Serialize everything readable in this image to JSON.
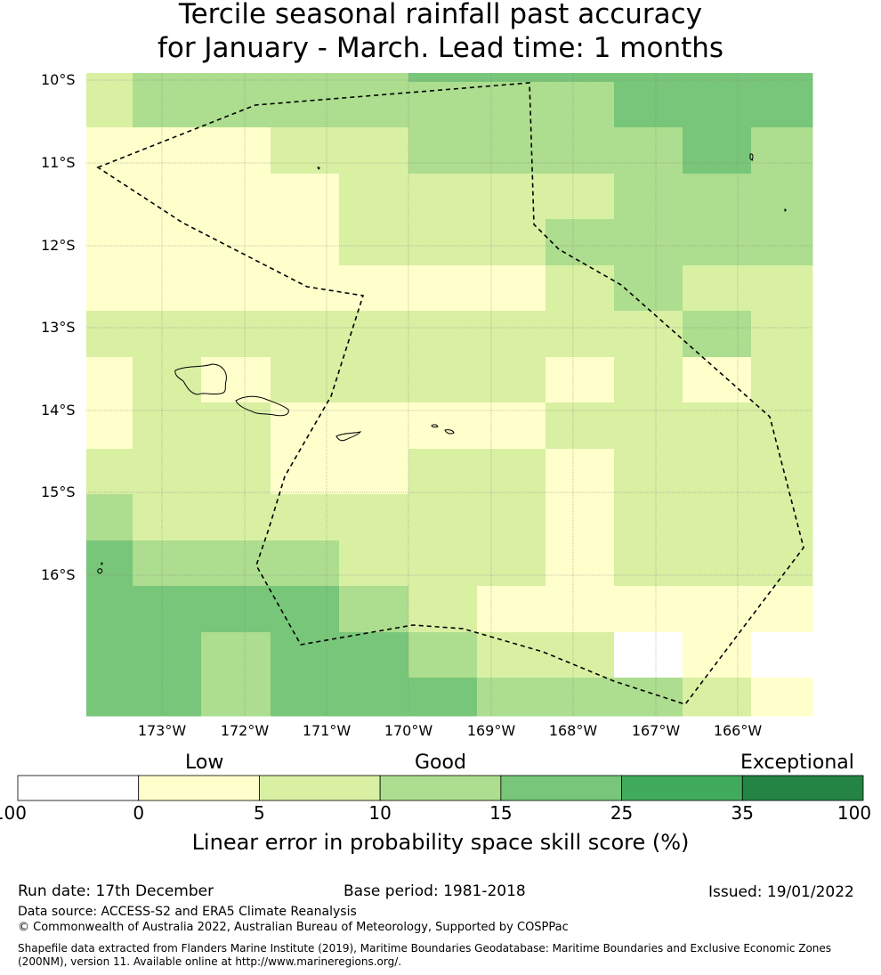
{
  "title": {
    "line1": "Tercile seasonal rainfall past accuracy",
    "line2": "for January - March. Lead time: 1 months"
  },
  "map": {
    "lat_labels": [
      "10°S",
      "11°S",
      "12°S",
      "13°S",
      "14°S",
      "15°S",
      "16°S"
    ],
    "lon_labels": [
      "173°W",
      "172°W",
      "171°W",
      "170°W",
      "169°W",
      "168°W",
      "167°W",
      "166°W"
    ],
    "grid_classes": [
      [
        2,
        2,
        3,
        3,
        3,
        3,
        3,
        3,
        4,
        4,
        4,
        4,
        4,
        4,
        4,
        4
      ],
      [
        2,
        2,
        3,
        3,
        3,
        3,
        3,
        3,
        3,
        3,
        3,
        3,
        4,
        4,
        4,
        4
      ],
      [
        1,
        1,
        1,
        1,
        2,
        2,
        2,
        3,
        3,
        3,
        3,
        3,
        3,
        3,
        4,
        3
      ],
      [
        1,
        1,
        1,
        1,
        1,
        1,
        2,
        2,
        2,
        2,
        2,
        2,
        3,
        3,
        3,
        3
      ],
      [
        1,
        1,
        1,
        1,
        1,
        1,
        2,
        2,
        2,
        2,
        2,
        3,
        3,
        3,
        3,
        3
      ],
      [
        1,
        1,
        1,
        1,
        1,
        1,
        1,
        1,
        1,
        1,
        2,
        2,
        3,
        3,
        2,
        2
      ],
      [
        2,
        1,
        2,
        2,
        2,
        2,
        2,
        2,
        2,
        2,
        2,
        2,
        2,
        2,
        3,
        2
      ],
      [
        1,
        2,
        2,
        1,
        2,
        2,
        2,
        2,
        2,
        2,
        1,
        1,
        2,
        2,
        1,
        2
      ],
      [
        1,
        1,
        2,
        2,
        2,
        1,
        1,
        1,
        1,
        1,
        2,
        2,
        2,
        2,
        2,
        2
      ],
      [
        2,
        1,
        2,
        2,
        2,
        1,
        1,
        2,
        2,
        2,
        1,
        1,
        2,
        2,
        2,
        2
      ],
      [
        3,
        2,
        2,
        2,
        2,
        2,
        2,
        2,
        2,
        2,
        2,
        1,
        2,
        2,
        2,
        2
      ],
      [
        4,
        3,
        3,
        3,
        3,
        3,
        2,
        2,
        2,
        2,
        1,
        1,
        2,
        2,
        2,
        2
      ],
      [
        4,
        4,
        4,
        4,
        4,
        4,
        3,
        2,
        2,
        1,
        1,
        1,
        1,
        1,
        1,
        1
      ],
      [
        4,
        4,
        4,
        3,
        3,
        4,
        4,
        3,
        3,
        2,
        2,
        2,
        0,
        1,
        1,
        0
      ],
      [
        4,
        4,
        4,
        3,
        3,
        4,
        4,
        4,
        4,
        3,
        3,
        3,
        3,
        1,
        2,
        1
      ]
    ]
  },
  "colorbar": {
    "categories": [
      "Low",
      "Good",
      "Exceptional"
    ],
    "ticks": [
      "-100",
      "0",
      "5",
      "10",
      "15",
      "25",
      "35",
      "100"
    ],
    "colors": [
      "#ffffff",
      "#ffffcc",
      "#d9f0a3",
      "#addd8e",
      "#78c679",
      "#41ab5d",
      "#238443"
    ],
    "label": "Linear error in probability space skill score (%)"
  },
  "footer": {
    "run_date": "Run date: 17th December",
    "base_period": "Base period: 1981-2018",
    "issued": "Issued: 19/01/2022",
    "data_source": "Data source: ACCESS-S2 and ERA5 Climate Reanalysis",
    "copyright": "© Commonwealth of Australia 2022, Australian Bureau of Meteorology, Supported by COSPPac",
    "shapefile_line1": "Shapefile data extracted from Flanders Marine Institute (2019), Maritime Boundaries Geodatabase: Maritime Boundaries and Exclusive Economic Zones",
    "shapefile_line2": "(200NM), version 11. Available online at http://www.marineregions.org/."
  }
}
